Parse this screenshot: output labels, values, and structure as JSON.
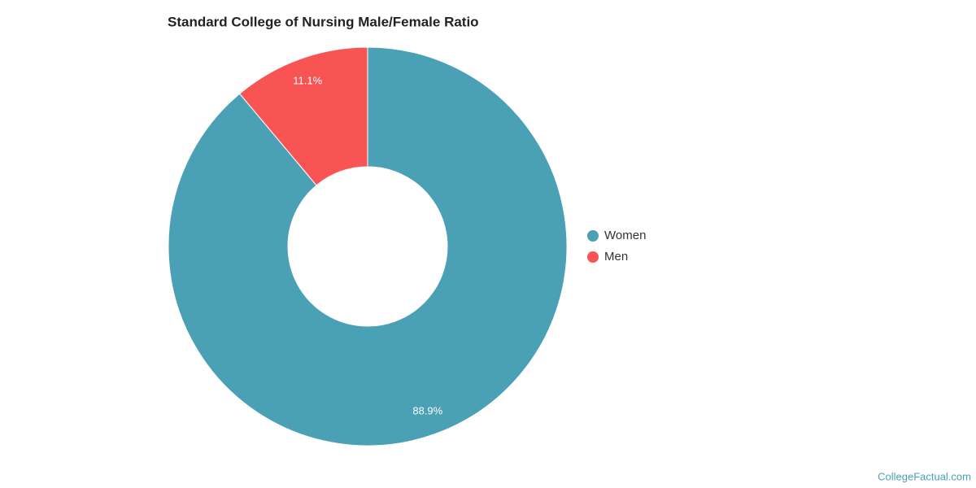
{
  "chart_data": {
    "type": "pie",
    "title": "Standard College of Nursing Male/Female Ratio",
    "categories": [
      "Women",
      "Men"
    ],
    "values": [
      88.9,
      11.1
    ],
    "value_labels": [
      "88.9%",
      "11.1%"
    ],
    "colors": [
      "#4aa0b4",
      "#f95454"
    ],
    "legend": "right"
  },
  "credit": "CollegeFactual.com"
}
